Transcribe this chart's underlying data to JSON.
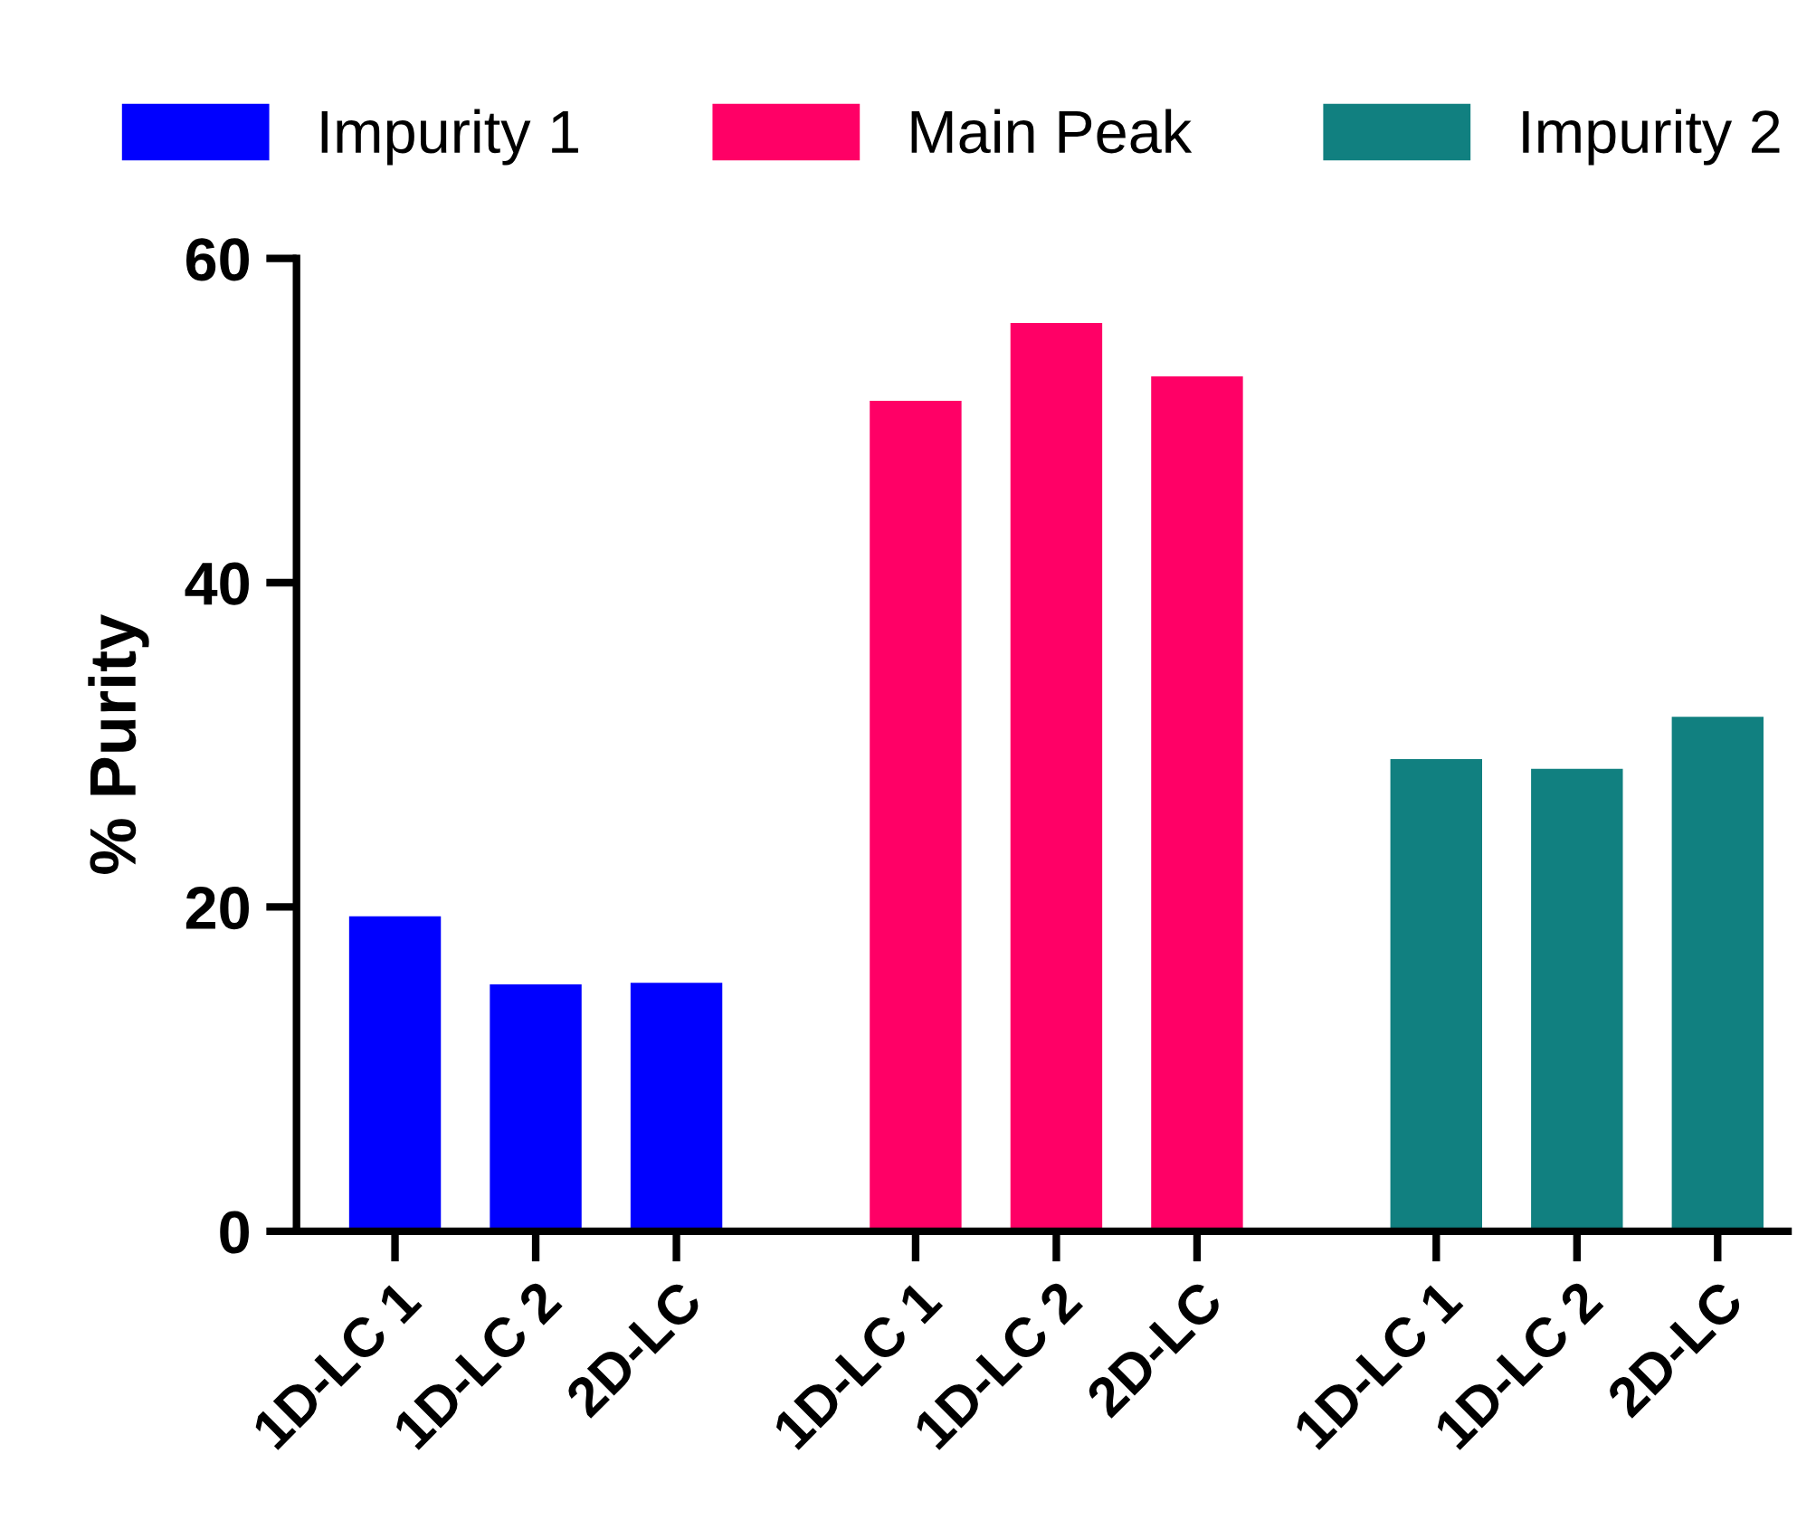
{
  "chart_data": {
    "type": "bar",
    "ylabel": "% Purity",
    "categories": [
      "1D-LC 1",
      "1D-LC 2",
      "2D-LC",
      "1D-LC 1",
      "1D-LC 2",
      "2D-LC",
      "1D-LC 1",
      "1D-LC 2",
      "2D-LC"
    ],
    "series": [
      {
        "name": "Impurity 1",
        "color": "#0000ff",
        "values": [
          19.5,
          15.3,
          15.4,
          null,
          null,
          null,
          null,
          null,
          null
        ]
      },
      {
        "name": "Main Peak",
        "color": "#ff0066",
        "values": [
          null,
          null,
          null,
          51.3,
          56.1,
          52.8,
          null,
          null,
          null
        ]
      },
      {
        "name": "Impurity 2",
        "color": "#118080",
        "values": [
          null,
          null,
          null,
          null,
          null,
          null,
          29.2,
          28.6,
          31.8
        ]
      }
    ],
    "ylim": [
      0,
      60
    ],
    "yticks": [
      0,
      20,
      40,
      60
    ],
    "legend": "top",
    "grid": false
  }
}
